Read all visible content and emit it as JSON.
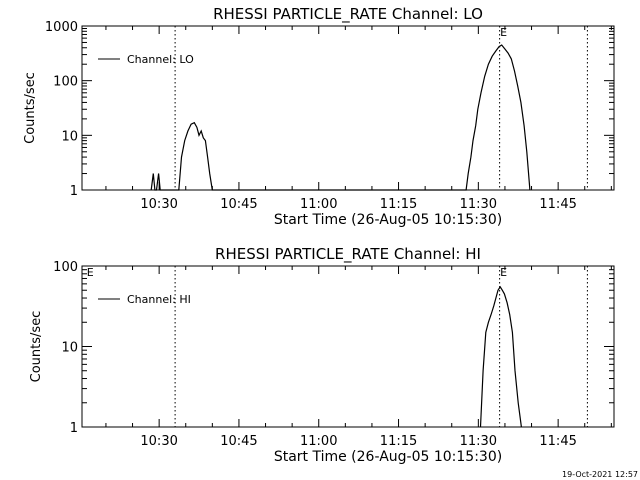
{
  "footer": {
    "timestamp": "19-Oct-2021 12:57"
  },
  "chart_data": [
    {
      "type": "line",
      "title": "RHESSI PARTICLE_RATE Channel: LO",
      "xlabel": "Start Time (26-Aug-05 10:15:30)",
      "ylabel": "Counts/sec",
      "xlim_minutes": [
        0,
        100
      ],
      "ylim": [
        1,
        1000
      ],
      "yscale": "log",
      "xticks": [
        "10:30",
        "10:45",
        "11:00",
        "11:15",
        "11:30",
        "11:45"
      ],
      "xtick_minutes": [
        14.5,
        29.5,
        44.5,
        59.5,
        74.5,
        89.5
      ],
      "yticks": [
        "1",
        "10",
        "100",
        "1000"
      ],
      "ytick_values": [
        1,
        10,
        100,
        1000
      ],
      "legend": {
        "label": "Channel: LO",
        "position": "top-left"
      },
      "vlines_minutes": [
        17.5,
        78.5,
        95.0
      ],
      "markers": [
        {
          "label": "E",
          "minute": 78.5
        }
      ],
      "series": [
        {
          "name": "Channel: LO",
          "x": [
            13.0,
            13.4,
            13.7,
            14.0,
            14.4,
            14.7,
            15.1,
            18.2,
            18.7,
            19.3,
            19.9,
            20.5,
            21.1,
            21.6,
            22.0,
            22.4,
            22.8,
            23.2,
            23.6,
            24.0,
            24.5,
            72.2,
            72.6,
            73.1,
            73.5,
            74.0,
            74.4,
            75.0,
            75.7,
            76.4,
            77.1,
            77.8,
            78.4,
            78.9,
            79.5,
            80.1,
            80.7,
            81.3,
            81.9,
            82.5,
            83.1,
            83.6,
            84.2
          ],
          "y": [
            1,
            2,
            1,
            1,
            2,
            1,
            1,
            1,
            4,
            8,
            12,
            16,
            17,
            14,
            10,
            12,
            9,
            8,
            4,
            2,
            1,
            1,
            2,
            4,
            8,
            15,
            30,
            60,
            120,
            200,
            280,
            350,
            420,
            450,
            380,
            320,
            250,
            150,
            80,
            40,
            15,
            5,
            1
          ]
        }
      ]
    },
    {
      "type": "line",
      "title": "RHESSI PARTICLE_RATE Channel: HI",
      "xlabel": "Start Time (26-Aug-05 10:15:30)",
      "ylabel": "Counts/sec",
      "xlim_minutes": [
        0,
        100
      ],
      "ylim": [
        1,
        100
      ],
      "yscale": "log",
      "xticks": [
        "10:30",
        "10:45",
        "11:00",
        "11:15",
        "11:30",
        "11:45"
      ],
      "xtick_minutes": [
        14.5,
        29.5,
        44.5,
        59.5,
        74.5,
        89.5
      ],
      "yticks": [
        "1",
        "10",
        "100"
      ],
      "ytick_values": [
        1,
        10,
        100
      ],
      "legend": {
        "label": "Channel: HI",
        "position": "top-left"
      },
      "vlines_minutes": [
        17.5,
        78.5,
        95.0
      ],
      "markers": [
        {
          "label": "E",
          "minute": 0.8
        },
        {
          "label": "E",
          "minute": 78.5
        }
      ],
      "series": [
        {
          "name": "Channel: HI",
          "x": [
            74.9,
            75.4,
            75.9,
            76.4,
            76.9,
            77.4,
            77.8,
            78.2,
            78.6,
            79.0,
            79.4,
            79.9,
            80.4,
            80.9,
            81.4,
            82.0,
            82.6
          ],
          "y": [
            1,
            5,
            15,
            20,
            25,
            32,
            40,
            50,
            55,
            50,
            45,
            35,
            25,
            15,
            5,
            2,
            1
          ]
        }
      ]
    }
  ]
}
